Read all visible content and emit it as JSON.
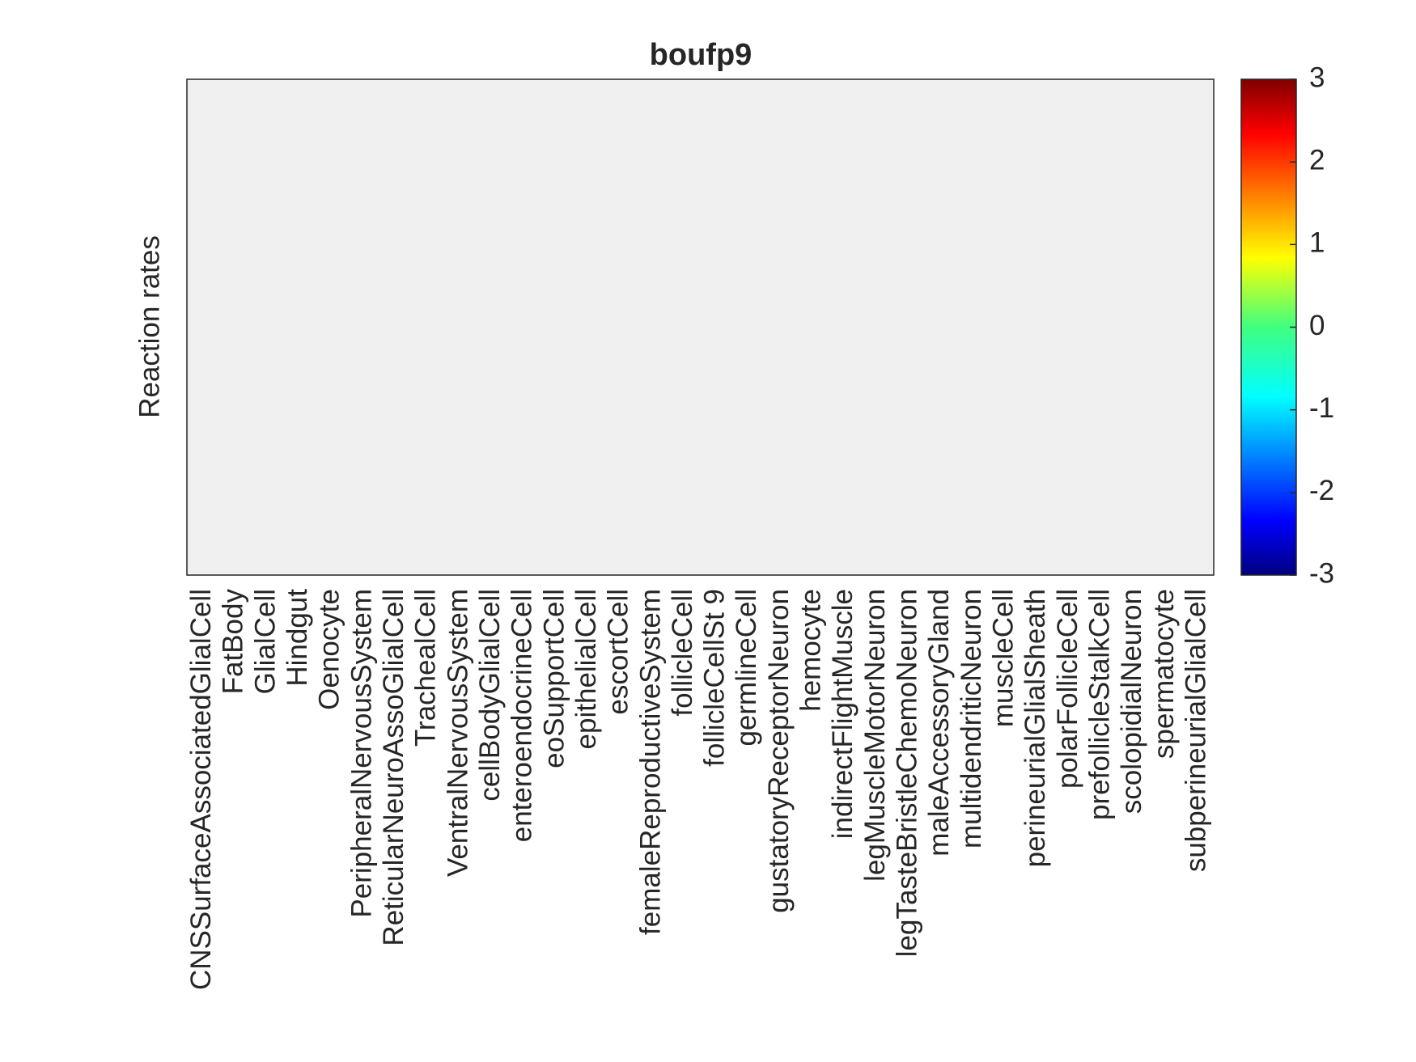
{
  "chart_data": {
    "type": "heatmap",
    "title": "boufp9",
    "ylabel": "Reaction rates",
    "categories": [
      "CNSSurfaceAssociatedGlialCell",
      "FatBody",
      "GlialCell",
      "Hindgut",
      "Oenocyte",
      "PeripheralNervousSystem",
      "ReticularNeuroAssoGlialCell",
      "TrachealCell",
      "VentralNervousSystem",
      "cellBodyGlialCell",
      "enteroendocrineCell",
      "eoSupportCell",
      "epithelialCell",
      "escortCell",
      "femaleReproductiveSystem",
      "follicleCell",
      "follicleCellSt 9",
      "germlineCell",
      "gustatoryReceptorNeuron",
      "hemocyte",
      "indirectFlightMuscle",
      "legMuscleMotorNeuron",
      "legTasteBristleChemoNeuron",
      "maleAccessoryGland",
      "multidendriticNeuron",
      "muscleCell",
      "perineurialGlialSheath",
      "polarFollicleCell",
      "prefollicleStalkCell",
      "scolopidialNeuron",
      "spermatocyte",
      "subperineurialGlialCell"
    ],
    "nan_color": "#f0f0f0",
    "colormap": "jet",
    "clim": [
      -3,
      3
    ],
    "cticks": [
      -3,
      -2,
      -1,
      0,
      1,
      2,
      3
    ]
  }
}
